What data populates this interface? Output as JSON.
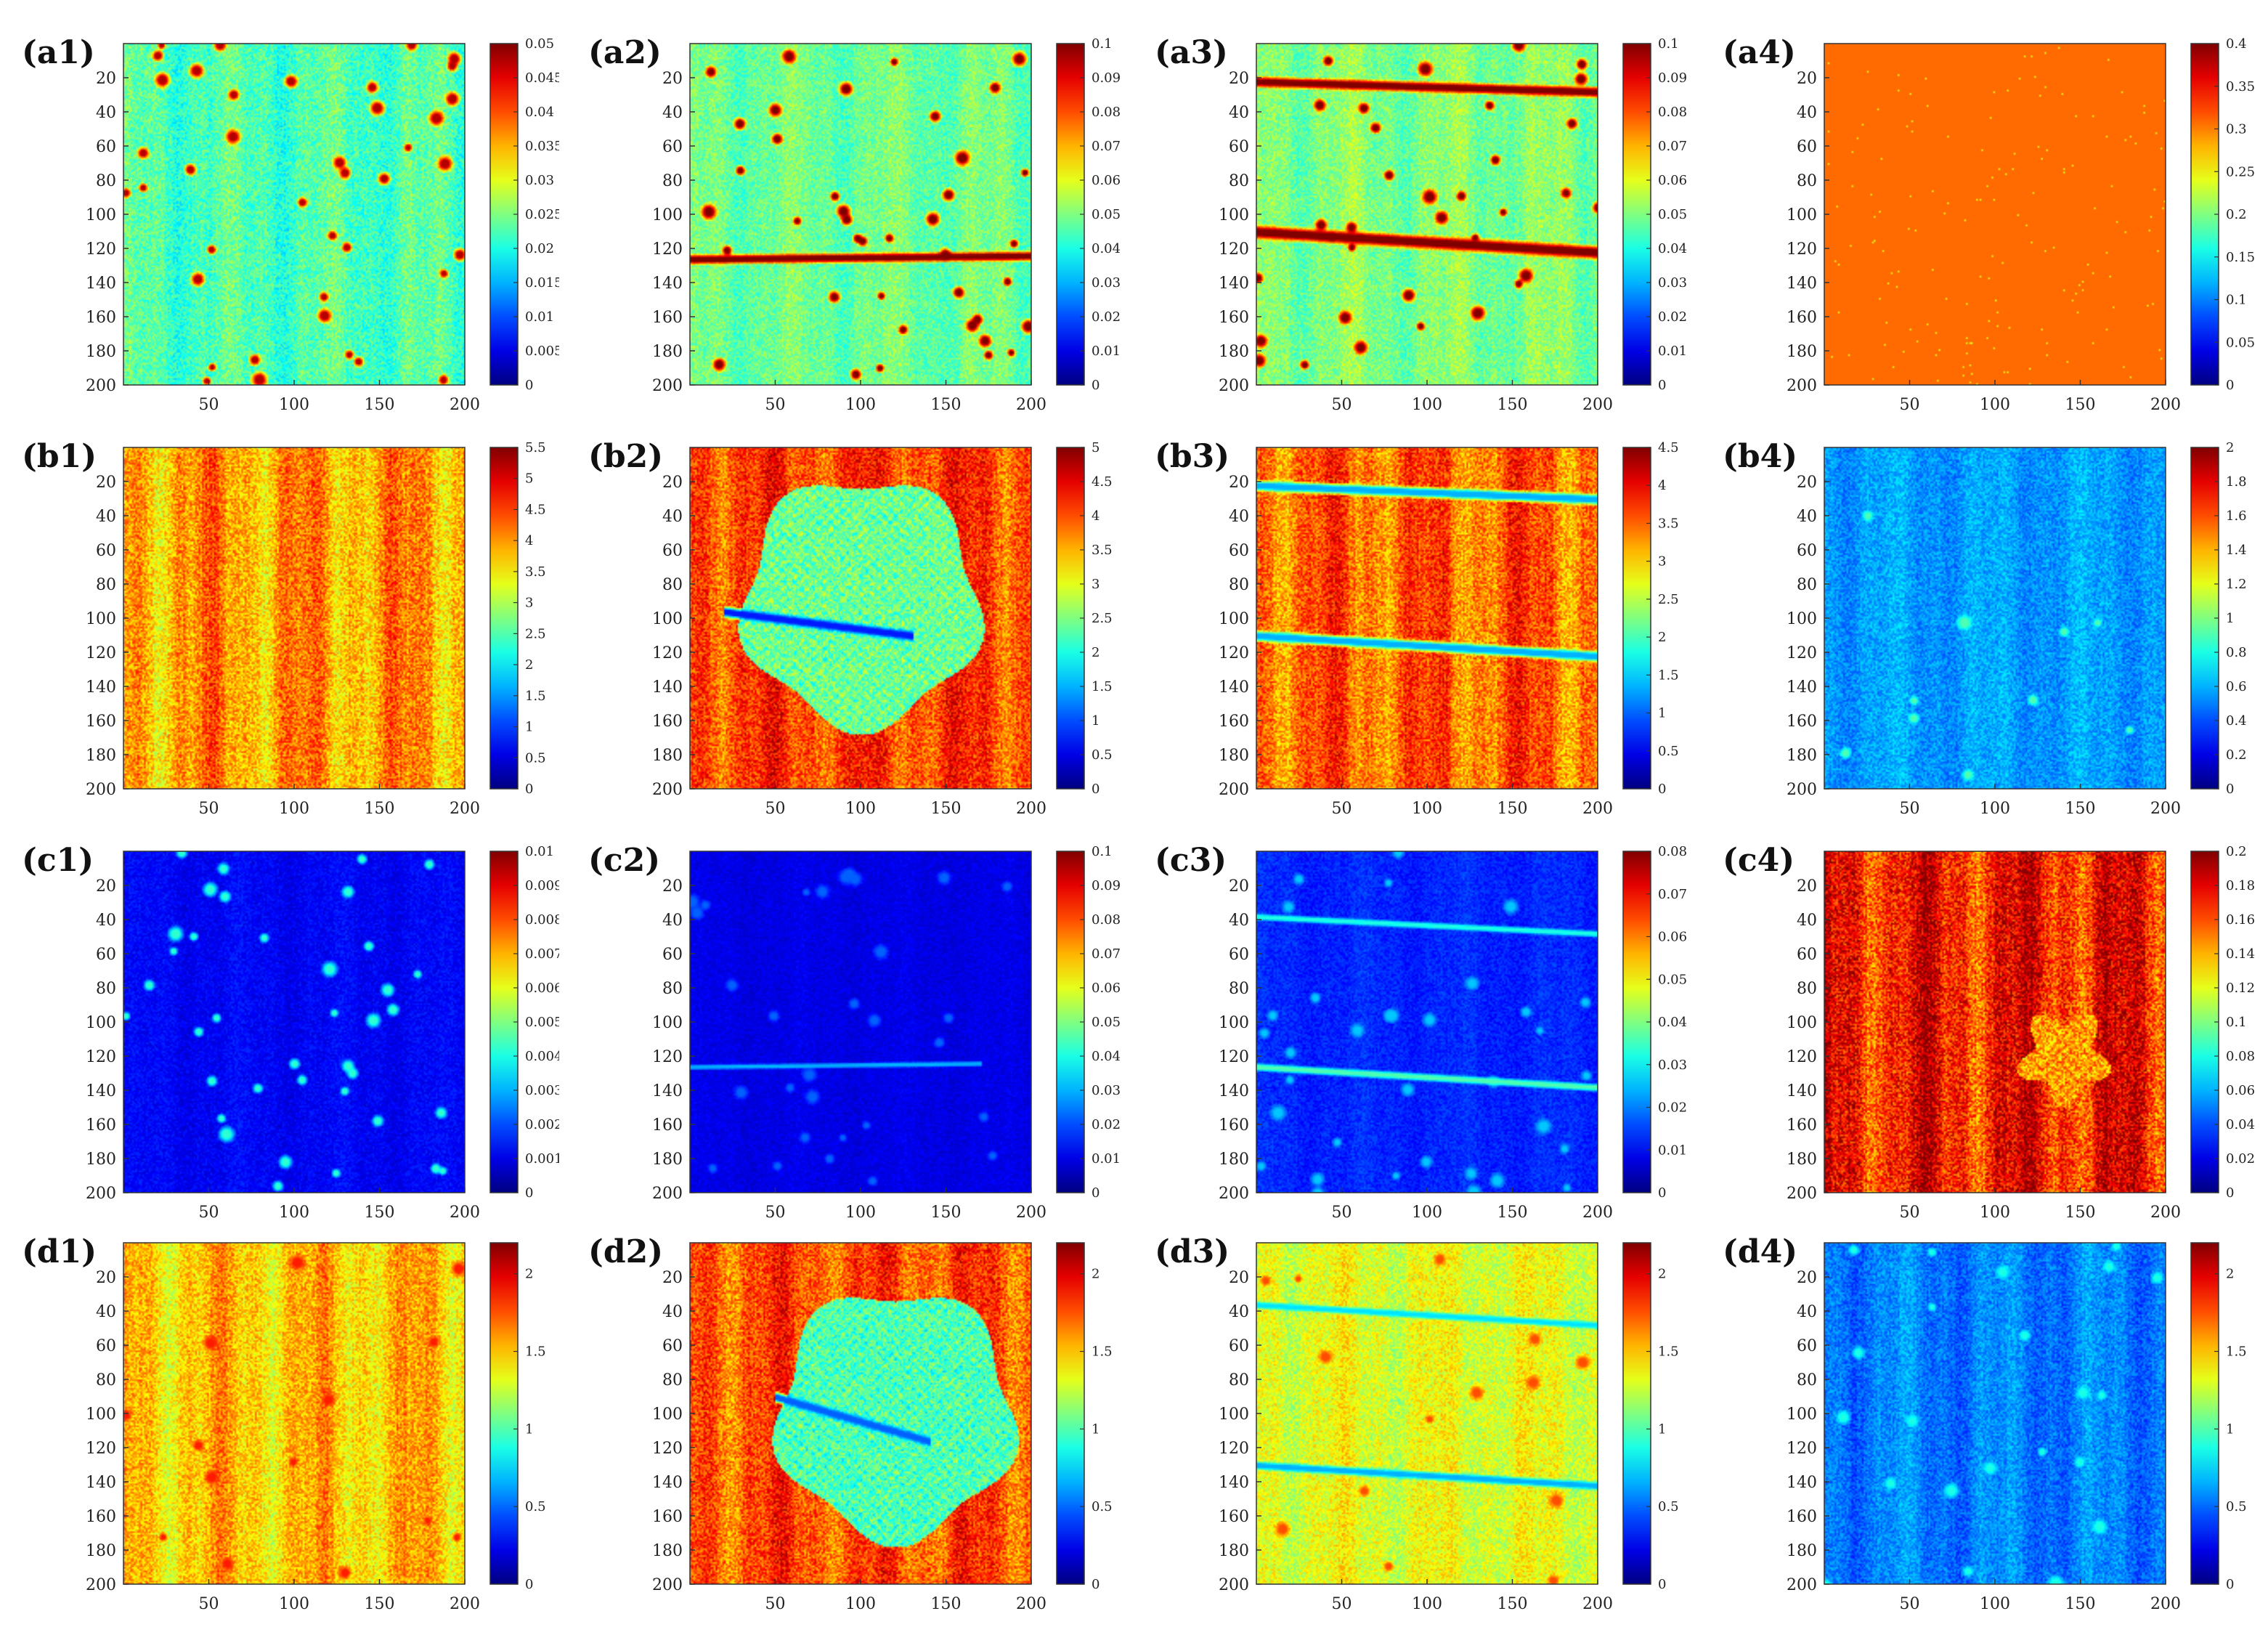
{
  "figure": {
    "description_columns": [
      "1",
      "2",
      "3",
      "4"
    ],
    "rows": [
      "a",
      "b",
      "c",
      "d"
    ]
  },
  "chart_data": [
    {
      "id": "a1",
      "type": "heatmap",
      "label": "(a1)",
      "pattern": "spots",
      "base": 0.45,
      "noise": 0.08,
      "spot_value": 0.95,
      "spot_count": 40,
      "streak_amp": 0.06,
      "lines": [],
      "blob": null,
      "x_ticks": [
        50,
        100,
        150,
        200
      ],
      "y_ticks": [
        20,
        40,
        60,
        80,
        100,
        120,
        140,
        160,
        180,
        200
      ],
      "xlim": [
        0,
        200
      ],
      "ylim": [
        0,
        200
      ],
      "cbar_min": 0,
      "cbar_max": 0.05,
      "cbar_ticks": [
        "0",
        "0.005",
        "0.01",
        "0.015",
        "0.02",
        "0.025",
        "0.03",
        "0.035",
        "0.04",
        "0.045",
        "0.05"
      ]
    },
    {
      "id": "a2",
      "type": "heatmap",
      "label": "(a2)",
      "pattern": "spots",
      "base": 0.48,
      "noise": 0.07,
      "spot_value": 1.0,
      "spot_count": 40,
      "streak_amp": 0.05,
      "lines": [
        {
          "y0": 0.37,
          "y1": 0.38,
          "x0": 0.0,
          "x1": 1.0,
          "value": 1.0,
          "width": 0.018
        }
      ],
      "blob": null,
      "x_ticks": [
        50,
        100,
        150,
        200
      ],
      "y_ticks": [
        20,
        40,
        60,
        80,
        100,
        120,
        140,
        160,
        180,
        200
      ],
      "xlim": [
        0,
        200
      ],
      "ylim": [
        0,
        200
      ],
      "cbar_min": 0,
      "cbar_max": 0.1,
      "cbar_ticks": [
        "0",
        "0.01",
        "0.02",
        "0.03",
        "0.04",
        "0.05",
        "0.06",
        "0.07",
        "0.08",
        "0.09",
        "0.1"
      ]
    },
    {
      "id": "a3",
      "type": "heatmap",
      "label": "(a3)",
      "pattern": "spots",
      "base": 0.5,
      "noise": 0.07,
      "spot_value": 1.0,
      "spot_count": 34,
      "streak_amp": 0.06,
      "lines": [
        {
          "y0": 0.89,
          "y1": 0.86,
          "x0": 0.0,
          "x1": 1.0,
          "value": 1.0,
          "width": 0.02
        },
        {
          "y0": 0.45,
          "y1": 0.39,
          "x0": 0.0,
          "x1": 1.0,
          "value": 1.0,
          "width": 0.025
        }
      ],
      "blob": null,
      "x_ticks": [
        50,
        100,
        150,
        200
      ],
      "y_ticks": [
        20,
        40,
        60,
        80,
        100,
        120,
        140,
        160,
        180,
        200
      ],
      "xlim": [
        0,
        200
      ],
      "ylim": [
        0,
        200
      ],
      "cbar_min": 0,
      "cbar_max": 0.1,
      "cbar_ticks": [
        "0",
        "0.01",
        "0.02",
        "0.03",
        "0.04",
        "0.05",
        "0.06",
        "0.07",
        "0.08",
        "0.09",
        "0.1"
      ]
    },
    {
      "id": "a4",
      "type": "heatmap",
      "label": "(a4)",
      "pattern": "uniform",
      "base": 0.77,
      "noise": 0.0,
      "spot_value": 0.6,
      "spot_count": 0,
      "streak_amp": 0.0,
      "lines": [],
      "blob": null,
      "x_ticks": [
        50,
        100,
        150,
        200
      ],
      "y_ticks": [
        20,
        40,
        60,
        80,
        100,
        120,
        140,
        160,
        180,
        200
      ],
      "xlim": [
        0,
        200
      ],
      "ylim": [
        0,
        200
      ],
      "cbar_min": 0,
      "cbar_max": 0.4,
      "cbar_ticks": [
        "0",
        "0.05",
        "0.1",
        "0.15",
        "0.2",
        "0.25",
        "0.3",
        "0.35",
        "0.4"
      ]
    },
    {
      "id": "b1",
      "type": "heatmap",
      "label": "(b1)",
      "pattern": "streaks",
      "base": 0.72,
      "noise": 0.1,
      "spot_value": 0.6,
      "spot_count": 0,
      "streak_amp": 0.12,
      "lines": [],
      "blob": null,
      "x_ticks": [
        50,
        100,
        150,
        200
      ],
      "y_ticks": [
        20,
        40,
        60,
        80,
        100,
        120,
        140,
        160,
        180,
        200
      ],
      "xlim": [
        0,
        200
      ],
      "ylim": [
        0,
        200
      ],
      "cbar_min": 0,
      "cbar_max": 5.5,
      "cbar_ticks": [
        "0",
        "0.5",
        "1",
        "1.5",
        "2",
        "2.5",
        "3",
        "3.5",
        "4",
        "4.5",
        "5",
        "5.5"
      ]
    },
    {
      "id": "b2",
      "type": "heatmap",
      "label": "(b2)",
      "pattern": "streaks",
      "base": 0.82,
      "noise": 0.1,
      "spot_value": 0.6,
      "spot_count": 0,
      "streak_amp": 0.1,
      "lines": [
        {
          "y0": 0.52,
          "y1": 0.45,
          "x0": 0.1,
          "x1": 0.65,
          "value": 0.15,
          "width": 0.02
        }
      ],
      "blob": {
        "cx": 0.5,
        "cy": 0.55,
        "r": 0.36,
        "value": 0.48
      },
      "x_ticks": [
        50,
        100,
        150,
        200
      ],
      "y_ticks": [
        20,
        40,
        60,
        80,
        100,
        120,
        140,
        160,
        180,
        200
      ],
      "xlim": [
        0,
        200
      ],
      "ylim": [
        0,
        200
      ],
      "cbar_min": 0,
      "cbar_max": 5,
      "cbar_ticks": [
        "0",
        "0.5",
        "1",
        "1.5",
        "2",
        "2.5",
        "3",
        "3.5",
        "4",
        "4.5",
        "5"
      ]
    },
    {
      "id": "b3",
      "type": "heatmap",
      "label": "(b3)",
      "pattern": "streaks",
      "base": 0.78,
      "noise": 0.1,
      "spot_value": 0.6,
      "spot_count": 0,
      "streak_amp": 0.12,
      "lines": [
        {
          "y0": 0.89,
          "y1": 0.85,
          "x0": 0.0,
          "x1": 1.0,
          "value": 0.3,
          "width": 0.02
        },
        {
          "y0": 0.45,
          "y1": 0.39,
          "x0": 0.0,
          "x1": 1.0,
          "value": 0.3,
          "width": 0.02
        }
      ],
      "blob": null,
      "x_ticks": [
        50,
        100,
        150,
        200
      ],
      "y_ticks": [
        20,
        40,
        60,
        80,
        100,
        120,
        140,
        160,
        180,
        200
      ],
      "xlim": [
        0,
        200
      ],
      "ylim": [
        0,
        200
      ],
      "cbar_min": 0,
      "cbar_max": 4.5,
      "cbar_ticks": [
        "0",
        "0.5",
        "1",
        "1.5",
        "2",
        "2.5",
        "3",
        "3.5",
        "4",
        "4.5"
      ]
    },
    {
      "id": "b4",
      "type": "heatmap",
      "label": "(b4)",
      "pattern": "streaks",
      "base": 0.28,
      "noise": 0.06,
      "spot_value": 0.45,
      "spot_count": 10,
      "streak_amp": 0.04,
      "lines": [],
      "blob": null,
      "x_ticks": [
        50,
        100,
        150,
        200
      ],
      "y_ticks": [
        20,
        40,
        60,
        80,
        100,
        120,
        140,
        160,
        180,
        200
      ],
      "xlim": [
        0,
        200
      ],
      "ylim": [
        0,
        200
      ],
      "cbar_min": 0,
      "cbar_max": 2,
      "cbar_ticks": [
        "0",
        "0.2",
        "0.4",
        "0.6",
        "0.8",
        "1",
        "1.2",
        "1.4",
        "1.6",
        "1.8",
        "2"
      ]
    },
    {
      "id": "c1",
      "type": "heatmap",
      "label": "(c1)",
      "pattern": "spots",
      "base": 0.12,
      "noise": 0.04,
      "spot_value": 0.42,
      "spot_count": 38,
      "streak_amp": 0.02,
      "lines": [],
      "blob": null,
      "x_ticks": [
        50,
        100,
        150,
        200
      ],
      "y_ticks": [
        20,
        40,
        60,
        80,
        100,
        120,
        140,
        160,
        180,
        200
      ],
      "xlim": [
        0,
        200
      ],
      "ylim": [
        0,
        200
      ],
      "cbar_min": 0,
      "cbar_max": 0.01,
      "cbar_ticks": [
        "0",
        "0.001",
        "0.002",
        "0.003",
        "0.004",
        "0.005",
        "0.006",
        "0.007",
        "0.008",
        "0.009",
        "0.01"
      ]
    },
    {
      "id": "c2",
      "type": "heatmap",
      "label": "(c2)",
      "pattern": "spots",
      "base": 0.1,
      "noise": 0.03,
      "spot_value": 0.22,
      "spot_count": 30,
      "streak_amp": 0.01,
      "lines": [
        {
          "y0": 0.37,
          "y1": 0.38,
          "x0": 0.0,
          "x1": 0.85,
          "value": 0.3,
          "width": 0.01
        }
      ],
      "blob": null,
      "x_ticks": [
        50,
        100,
        150,
        200
      ],
      "y_ticks": [
        20,
        40,
        60,
        80,
        100,
        120,
        140,
        160,
        180,
        200
      ],
      "xlim": [
        0,
        200
      ],
      "ylim": [
        0,
        200
      ],
      "cbar_min": 0,
      "cbar_max": 0.1,
      "cbar_ticks": [
        "0",
        "0.01",
        "0.02",
        "0.03",
        "0.04",
        "0.05",
        "0.06",
        "0.07",
        "0.08",
        "0.09",
        "0.1"
      ]
    },
    {
      "id": "c3",
      "type": "heatmap",
      "label": "(c3)",
      "pattern": "spots",
      "base": 0.16,
      "noise": 0.04,
      "spot_value": 0.32,
      "spot_count": 34,
      "streak_amp": 0.02,
      "lines": [
        {
          "y0": 0.81,
          "y1": 0.76,
          "x0": 0.0,
          "x1": 1.0,
          "value": 0.4,
          "width": 0.012
        },
        {
          "y0": 0.37,
          "y1": 0.31,
          "x0": 0.0,
          "x1": 1.0,
          "value": 0.45,
          "width": 0.014
        }
      ],
      "blob": null,
      "x_ticks": [
        50,
        100,
        150,
        200
      ],
      "y_ticks": [
        20,
        40,
        60,
        80,
        100,
        120,
        140,
        160,
        180,
        200
      ],
      "xlim": [
        0,
        200
      ],
      "ylim": [
        0,
        200
      ],
      "cbar_min": 0,
      "cbar_max": 0.08,
      "cbar_ticks": [
        "0",
        "0.01",
        "0.02",
        "0.03",
        "0.04",
        "0.05",
        "0.06",
        "0.07",
        "0.08"
      ]
    },
    {
      "id": "c4",
      "type": "heatmap",
      "label": "(c4)",
      "pattern": "streaks",
      "base": 0.86,
      "noise": 0.12,
      "spot_value": 0.6,
      "spot_count": 0,
      "streak_amp": 0.14,
      "lines": [],
      "blob": {
        "cx": 0.7,
        "cy": 0.4,
        "r": 0.12,
        "value": 0.72
      },
      "x_ticks": [
        50,
        100,
        150,
        200
      ],
      "y_ticks": [
        20,
        40,
        60,
        80,
        100,
        120,
        140,
        160,
        180,
        200
      ],
      "xlim": [
        0,
        200
      ],
      "ylim": [
        0,
        200
      ],
      "cbar_min": 0,
      "cbar_max": 0.2,
      "cbar_ticks": [
        "0",
        "0.02",
        "0.04",
        "0.06",
        "0.08",
        "0.1",
        "0.12",
        "0.14",
        "0.16",
        "0.18",
        "0.2"
      ]
    },
    {
      "id": "d1",
      "type": "heatmap",
      "label": "(d1)",
      "pattern": "streaks",
      "base": 0.68,
      "noise": 0.09,
      "spot_value": 0.85,
      "spot_count": 14,
      "streak_amp": 0.1,
      "lines": [],
      "blob": null,
      "x_ticks": [
        50,
        100,
        150,
        200
      ],
      "y_ticks": [
        20,
        40,
        60,
        80,
        100,
        120,
        140,
        160,
        180,
        200
      ],
      "xlim": [
        0,
        200
      ],
      "ylim": [
        0,
        200
      ],
      "cbar_min": 0,
      "cbar_max": 2.2,
      "cbar_ticks": [
        "0",
        "0.5",
        "1",
        "1.5",
        "2"
      ]
    },
    {
      "id": "d2",
      "type": "heatmap",
      "label": "(d2)",
      "pattern": "streaks",
      "base": 0.8,
      "noise": 0.1,
      "spot_value": 0.6,
      "spot_count": 0,
      "streak_amp": 0.1,
      "lines": [
        {
          "y0": 0.55,
          "y1": 0.42,
          "x0": 0.25,
          "x1": 0.7,
          "value": 0.22,
          "width": 0.02
        }
      ],
      "blob": {
        "cx": 0.6,
        "cy": 0.5,
        "r": 0.36,
        "value": 0.45
      },
      "x_ticks": [
        50,
        100,
        150,
        200
      ],
      "y_ticks": [
        20,
        40,
        60,
        80,
        100,
        120,
        140,
        160,
        180,
        200
      ],
      "xlim": [
        0,
        200
      ],
      "ylim": [
        0,
        200
      ],
      "cbar_min": 0,
      "cbar_max": 2.2,
      "cbar_ticks": [
        "0",
        "0.5",
        "1",
        "1.5",
        "2"
      ]
    },
    {
      "id": "d3",
      "type": "heatmap",
      "label": "(d3)",
      "pattern": "streaks",
      "base": 0.6,
      "noise": 0.08,
      "spot_value": 0.8,
      "spot_count": 14,
      "streak_amp": 0.06,
      "lines": [
        {
          "y0": 0.82,
          "y1": 0.76,
          "x0": 0.0,
          "x1": 1.0,
          "value": 0.35,
          "width": 0.014
        },
        {
          "y0": 0.35,
          "y1": 0.29,
          "x0": 0.0,
          "x1": 1.0,
          "value": 0.3,
          "width": 0.016
        }
      ],
      "blob": null,
      "x_ticks": [
        50,
        100,
        150,
        200
      ],
      "y_ticks": [
        20,
        40,
        60,
        80,
        100,
        120,
        140,
        160,
        180,
        200
      ],
      "xlim": [
        0,
        200
      ],
      "ylim": [
        0,
        200
      ],
      "cbar_min": 0,
      "cbar_max": 2.2,
      "cbar_ticks": [
        "0",
        "0.5",
        "1",
        "1.5",
        "2"
      ]
    },
    {
      "id": "d4",
      "type": "heatmap",
      "label": "(d4)",
      "pattern": "streaks",
      "base": 0.25,
      "noise": 0.06,
      "spot_value": 0.4,
      "spot_count": 22,
      "streak_amp": 0.06,
      "lines": [],
      "blob": null,
      "x_ticks": [
        50,
        100,
        150,
        200
      ],
      "y_ticks": [
        20,
        40,
        60,
        80,
        100,
        120,
        140,
        160,
        180,
        200
      ],
      "xlim": [
        0,
        200
      ],
      "ylim": [
        0,
        200
      ],
      "cbar_min": 0,
      "cbar_max": 2.2,
      "cbar_ticks": [
        "0",
        "0.5",
        "1",
        "1.5",
        "2"
      ]
    }
  ]
}
